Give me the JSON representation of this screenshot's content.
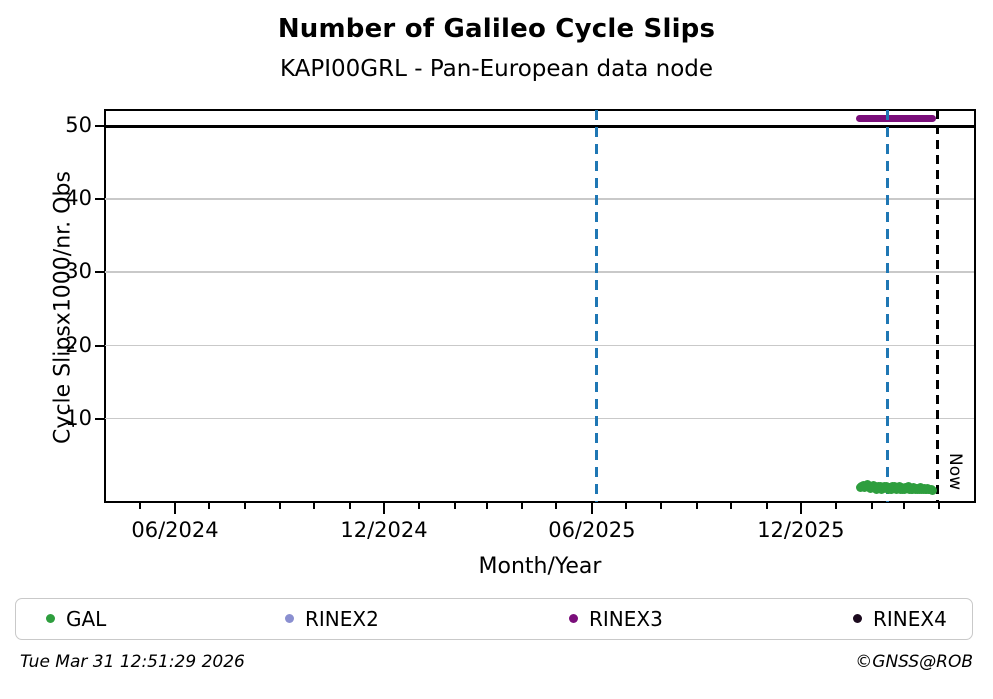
{
  "title": "Number of Galileo Cycle Slips",
  "subtitle": "KAPI00GRL - Pan-European data node",
  "chart_data": {
    "type": "scatter",
    "title": "Number of Galileo Cycle Slips",
    "subtitle": "KAPI00GRL - Pan-European data node",
    "xlabel": "Month/Year",
    "ylabel": "Cycle Slipsx1000/nr. Obs",
    "x_tick_labels": [
      "06/2024",
      "12/2024",
      "06/2025",
      "12/2025"
    ],
    "x_tick_dates": [
      "2024-06-01",
      "2024-12-01",
      "2025-06-01",
      "2025-12-01"
    ],
    "x_minor_tick_interval": "1 month",
    "xlim": [
      "2024-04-01",
      "2026-05-01"
    ],
    "y_ticks": [
      10,
      20,
      30,
      40,
      50
    ],
    "ylim": [
      -1.4,
      52.2
    ],
    "grid": "horizontal-light-gray",
    "threshold_line": {
      "y": 50,
      "color": "#000000",
      "style": "solid"
    },
    "vlines": [
      {
        "date": "2025-06-05",
        "color": "#1f77b4",
        "style": "dashed",
        "label": ""
      },
      {
        "date": "2026-02-15",
        "color": "#1f77b4",
        "style": "dashed",
        "label": ""
      },
      {
        "date": "2026-03-31",
        "color": "#000000",
        "style": "dashed",
        "label": "Now"
      }
    ],
    "series": [
      {
        "name": "GAL",
        "color": "#2E9E3E",
        "marker": "dot",
        "start_date": "2026-01-22",
        "cadence_days": 1,
        "values": [
          0.6,
          0.8,
          0.7,
          0.9,
          0.6,
          0.7,
          1.0,
          0.8,
          0.6,
          0.5,
          0.8,
          0.6,
          0.9,
          0.7,
          0.4,
          0.6,
          0.8,
          0.5,
          0.7,
          0.4,
          0.5,
          0.7,
          0.6,
          0.8,
          0.5,
          0.3,
          0.6,
          0.4,
          0.7,
          0.5,
          0.8,
          0.6,
          0.4,
          0.5,
          0.7,
          0.4,
          0.6,
          0.3,
          0.5,
          0.4,
          0.6,
          0.5,
          0.7,
          0.4,
          0.5,
          0.3,
          0.4,
          0.6,
          0.4,
          0.5,
          0.3,
          0.5,
          0.4,
          0.6,
          0.3,
          0.4,
          0.5,
          0.3,
          0.4,
          0.5,
          0.4,
          0.3,
          0.4,
          0.2
        ]
      },
      {
        "name": "RINEX2",
        "color": "#8A8FD0",
        "marker": "dot",
        "values": []
      },
      {
        "name": "RINEX3",
        "color": "#7A0E7A",
        "marker": "dot",
        "start_date": "2026-01-22",
        "end_date": "2026-03-26",
        "constant_value": 51
      },
      {
        "name": "RINEX4",
        "color": "#1C0A1E",
        "marker": "dot",
        "values": []
      }
    ],
    "legend_position": "bottom"
  },
  "legend": {
    "items": [
      {
        "label": "GAL",
        "color": "#2E9E3E"
      },
      {
        "label": "RINEX2",
        "color": "#8A8FD0"
      },
      {
        "label": "RINEX3",
        "color": "#7A0E7A"
      },
      {
        "label": "RINEX4",
        "color": "#1C0A1E"
      }
    ]
  },
  "footer": {
    "left": "Tue Mar 31 12:51:29 2026",
    "right": "©GNSS@ROB"
  },
  "colors": {
    "accent_blue": "#1f77b4",
    "grid_gray": "#c9c9c9",
    "legend_border": "#c9c9c9"
  }
}
